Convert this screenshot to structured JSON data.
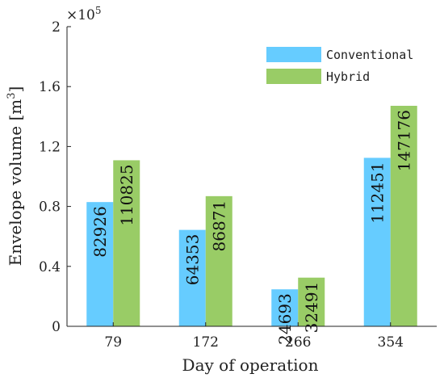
{
  "chart_data": {
    "type": "bar",
    "title": "",
    "xlabel": "Day of operation",
    "ylabel": "Envelope volume [m",
    "ylabel_superscript": "3",
    "ylabel_suffix": "]",
    "y_multiplier_label": "×10",
    "y_multiplier_exponent": "5",
    "categories": [
      "79",
      "172",
      "266",
      "354"
    ],
    "y_tick_labels": [
      "0",
      "0.4",
      "0.8",
      "1.2",
      "1.6",
      "2"
    ],
    "y_tick_values": [
      0,
      40000,
      80000,
      120000,
      160000,
      200000
    ],
    "ylim": [
      0,
      200000
    ],
    "grid": false,
    "legend_position": "top-right",
    "series": [
      {
        "name": "Conventional",
        "color": "#66ccff",
        "values": [
          82926,
          64353,
          24693,
          112451
        ],
        "labels": [
          "82926",
          "64353",
          "24693",
          "112451"
        ]
      },
      {
        "name": "Hybrid",
        "color": "#99cc66",
        "values": [
          110825,
          86871,
          32491,
          147176
        ],
        "labels": [
          "110825",
          "86871",
          "32491",
          "147176"
        ]
      }
    ]
  }
}
